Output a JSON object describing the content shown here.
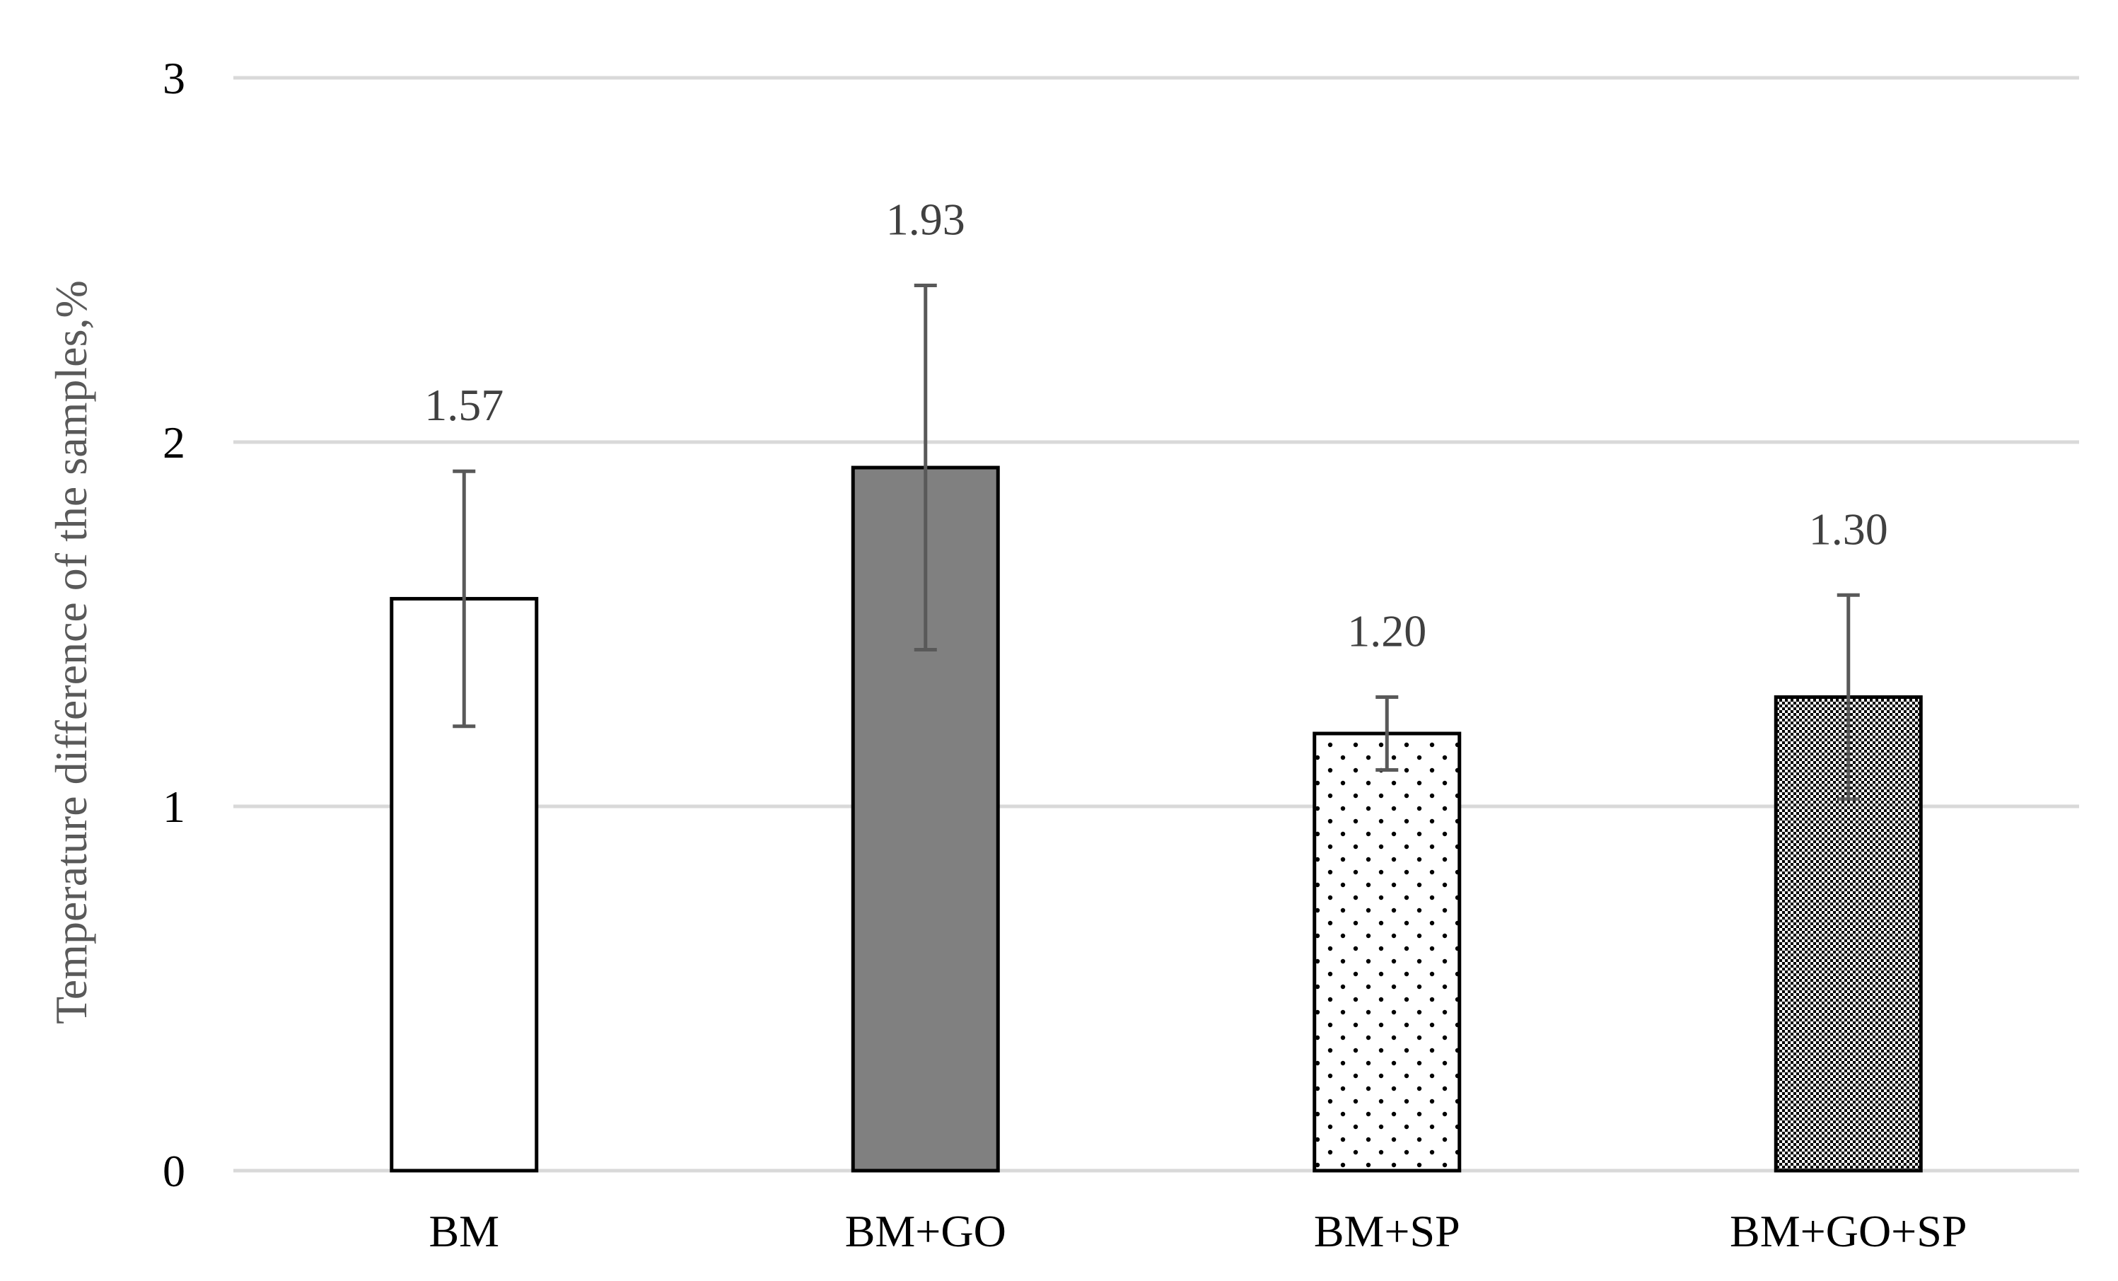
{
  "chart_data": {
    "type": "bar",
    "title": "",
    "xlabel": "",
    "ylabel": "Temperature difference of the samples,%",
    "ylim": [
      0,
      3
    ],
    "yticks": [
      0,
      1,
      2,
      3
    ],
    "grid": true,
    "legend": "none",
    "categories": [
      "BM",
      "BM+GO",
      "BM+SP",
      "BM+GO+SP"
    ],
    "values": [
      1.57,
      1.93,
      1.2,
      1.3
    ],
    "data_labels": [
      "1.57",
      "1.93",
      "1.20",
      "1.30"
    ],
    "errors": [
      0.35,
      0.5,
      0.1,
      0.28
    ],
    "fills": [
      "white",
      "solid-gray",
      "sparse-dots",
      "dense-checker"
    ],
    "colors": {
      "grid": "#d9d9d9",
      "bar_outline": "#000000",
      "solid_fill": "#808080",
      "error_bar": "#595959"
    }
  }
}
